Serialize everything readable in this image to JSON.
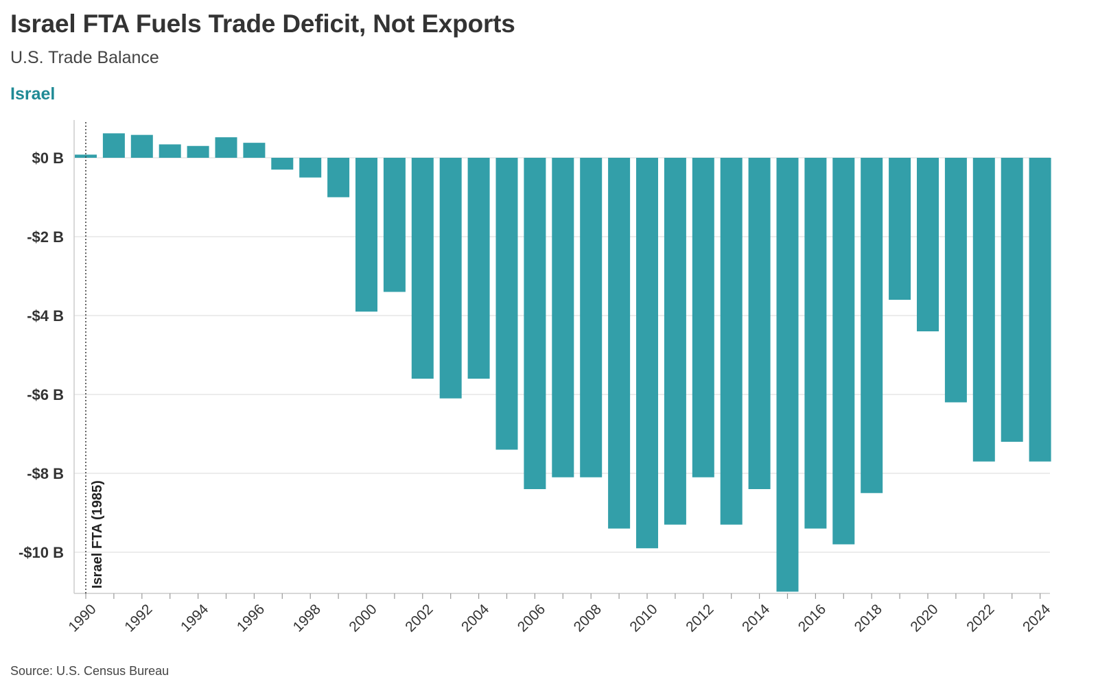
{
  "header": {
    "title": "Israel FTA Fuels Trade Deficit, Not Exports",
    "subtitle": "U.S. Trade Balance",
    "series_label": "Israel"
  },
  "footer": {
    "source": "Source: U.S. Census Bureau"
  },
  "colors": {
    "bar": "#339fa9",
    "series_label": "#1f8a95",
    "grid": "#e6e6e6",
    "annotation_line": "#333333"
  },
  "chart_data": {
    "type": "bar",
    "title": "Israel FTA Fuels Trade Deficit, Not Exports",
    "subtitle": "U.S. Trade Balance",
    "xlabel": "",
    "ylabel": "",
    "ylim": [
      -11,
      1
    ],
    "yticks": [
      0,
      -2,
      -4,
      -6,
      -8,
      -10
    ],
    "ytick_labels": [
      "$0 B",
      "-$2 B",
      "-$4 B",
      "-$6 B",
      "-$8 B",
      "-$10 B"
    ],
    "xtick_labels": [
      "1990",
      "1992",
      "1994",
      "1996",
      "1998",
      "2000",
      "2002",
      "2004",
      "2006",
      "2008",
      "2010",
      "2012",
      "2014",
      "2016",
      "2018",
      "2020",
      "2022",
      "2024"
    ],
    "categories": [
      1990,
      1991,
      1992,
      1993,
      1994,
      1995,
      1996,
      1997,
      1998,
      1999,
      2000,
      2001,
      2002,
      2003,
      2004,
      2005,
      2006,
      2007,
      2008,
      2009,
      2010,
      2011,
      2012,
      2013,
      2014,
      2015,
      2016,
      2017,
      2018,
      2019,
      2020,
      2021,
      2022,
      2023,
      2024
    ],
    "values": [
      0.08,
      0.62,
      0.58,
      0.34,
      0.3,
      0.52,
      0.38,
      -0.3,
      -0.5,
      -1.0,
      -3.9,
      -3.4,
      -5.6,
      -6.1,
      -5.6,
      -7.4,
      -8.4,
      -8.1,
      -8.1,
      -9.4,
      -9.9,
      -9.3,
      -8.1,
      -9.3,
      -8.4,
      -11.0,
      -9.4,
      -9.8,
      -8.5,
      -3.6,
      -4.4,
      -6.2,
      -7.7,
      -7.2,
      -7.7
    ],
    "grid": true,
    "annotations": [
      {
        "x": 1990,
        "label": "Israel FTA (1985)",
        "style": "dotted-vertical-line"
      }
    ]
  }
}
